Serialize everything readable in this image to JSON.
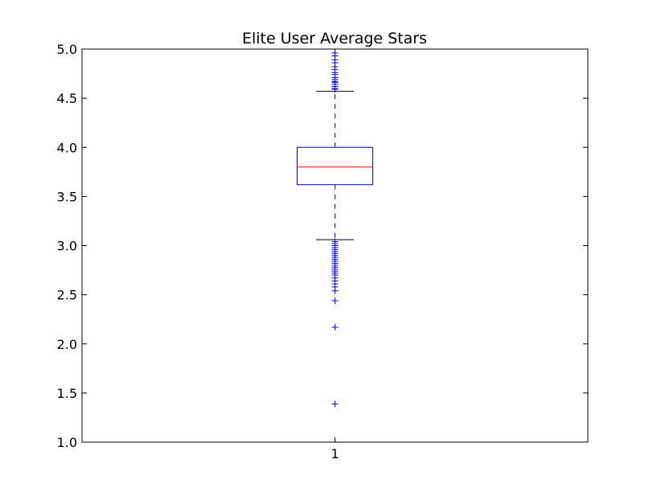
{
  "chart_data": {
    "type": "box",
    "title": "Elite User Average Stars",
    "xlabel": "",
    "ylabel": "",
    "categories": [
      "1"
    ],
    "ylim": [
      1.0,
      5.0
    ],
    "yticks": [
      1.0,
      1.5,
      2.0,
      2.5,
      3.0,
      3.5,
      4.0,
      4.5,
      5.0
    ],
    "ytick_labels": [
      "1.0",
      "1.5",
      "2.0",
      "2.5",
      "3.0",
      "3.5",
      "4.0",
      "4.5",
      "5.0"
    ],
    "grid": false,
    "series": [
      {
        "category": "1",
        "whisker_low": 3.06,
        "q1": 3.62,
        "median": 3.8,
        "q3": 4.0,
        "whisker_high": 4.57,
        "outliers": [
          1.39,
          2.17,
          2.44,
          2.54,
          2.58,
          2.61,
          2.64,
          2.67,
          2.7,
          2.72,
          2.74,
          2.76,
          2.78,
          2.8,
          2.82,
          2.84,
          2.86,
          2.88,
          2.9,
          2.92,
          2.94,
          2.96,
          2.98,
          3.0,
          3.02,
          3.04,
          4.59,
          4.6,
          4.62,
          4.64,
          4.66,
          4.67,
          4.69,
          4.71,
          4.74,
          4.76,
          4.79,
          4.82,
          4.86,
          4.89,
          4.93,
          4.96
        ]
      }
    ],
    "colors": {
      "box": "#0000ff",
      "median": "#ff0000",
      "cap": "#000000",
      "flier": "#0000ff"
    }
  }
}
